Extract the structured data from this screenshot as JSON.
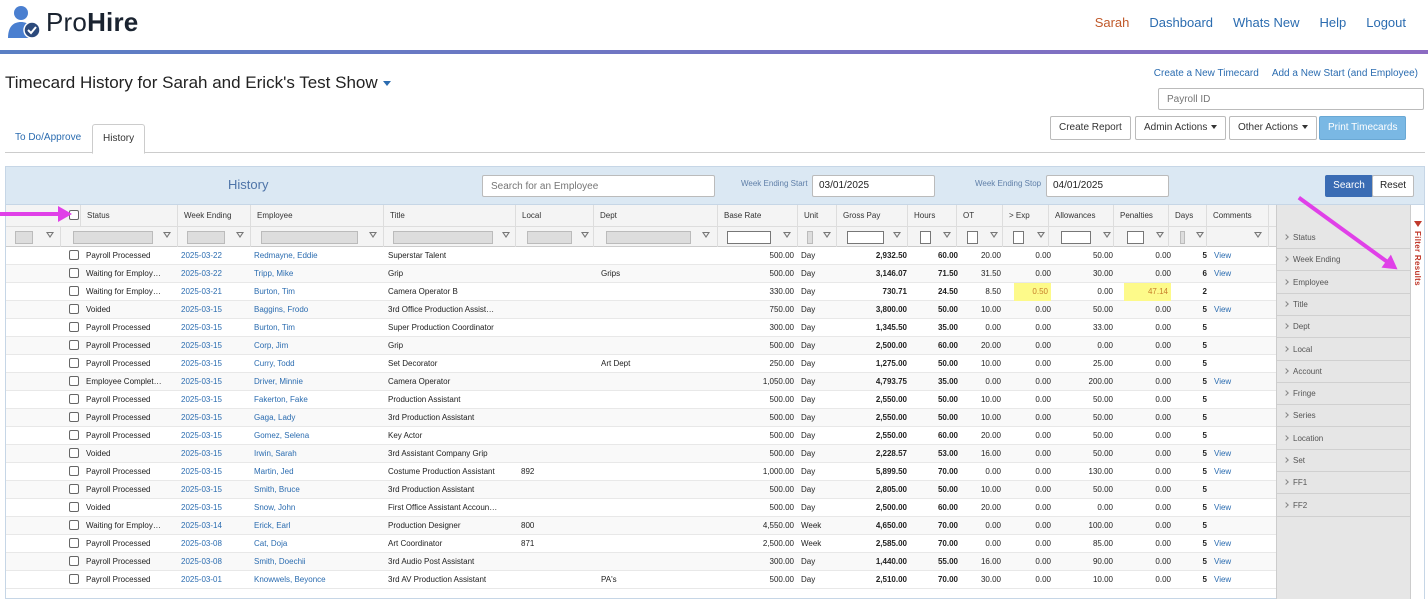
{
  "app": {
    "brand_pro": "Pro",
    "brand_hire": "Hire"
  },
  "nav": {
    "user": "Sarah",
    "items": [
      "Dashboard",
      "Whats New",
      "Help",
      "Logout"
    ]
  },
  "page": {
    "title": "Timecard History for Sarah and Erick's Test Show",
    "links": [
      "Create a New Timecard",
      "Add a New Start (and Employee)"
    ],
    "payroll_placeholder": "Payroll ID"
  },
  "tabs": [
    "To Do/Approve",
    "History"
  ],
  "actions": {
    "create_report": "Create Report",
    "admin": "Admin Actions",
    "other": "Other Actions",
    "print": "Print Timecards"
  },
  "history": {
    "title": "History",
    "search_placeholder": "Search for an Employee",
    "start_label": "Week Ending Start",
    "start_value": "03/01/2025",
    "stop_label": "Week Ending Stop",
    "stop_value": "04/01/2025",
    "search_button": "Search",
    "reset_button": "Reset"
  },
  "columns": [
    "Status",
    "Week Ending",
    "Employee",
    "Title",
    "Local",
    "Dept",
    "Base Rate",
    "Unit",
    "Gross Pay",
    "Hours",
    "OT",
    "> Exp",
    "Allowances",
    "Penalties",
    "Days",
    "Comments"
  ],
  "rows": [
    {
      "status": "Payroll Processed",
      "week": "2025-03-22",
      "employee": "Redmayne, Eddie",
      "title": "Superstar Talent",
      "local": "",
      "dept": "",
      "rate": "500.00",
      "unit": "Day",
      "gross": "2,932.50",
      "hours": "60.00",
      "ot": "20.00",
      "exp": "0.00",
      "allow": "50.00",
      "pen": "0.00",
      "days": "5",
      "comments": "View"
    },
    {
      "status": "Waiting for Employ…",
      "week": "2025-03-22",
      "employee": "Tripp, Mike",
      "title": "Grip",
      "local": "",
      "dept": "Grips",
      "rate": "500.00",
      "unit": "Day",
      "gross": "3,146.07",
      "hours": "71.50",
      "ot": "31.50",
      "exp": "0.00",
      "allow": "30.00",
      "pen": "0.00",
      "days": "6",
      "comments": "View"
    },
    {
      "status": "Waiting for Employ…",
      "week": "2025-03-21",
      "employee": "Burton, Tim",
      "title": "Camera Operator B",
      "local": "",
      "dept": "",
      "rate": "330.00",
      "unit": "Day",
      "gross": "730.71",
      "hours": "24.50",
      "ot": "8.50",
      "exp": "0.50",
      "allow": "0.00",
      "pen": "47.14",
      "days": "2",
      "comments": ""
    },
    {
      "status": "Voided",
      "week": "2025-03-15",
      "employee": "Baggins, Frodo",
      "title": "3rd Office Production Assist…",
      "local": "",
      "dept": "",
      "rate": "750.00",
      "unit": "Day",
      "gross": "3,800.00",
      "hours": "50.00",
      "ot": "10.00",
      "exp": "0.00",
      "allow": "50.00",
      "pen": "0.00",
      "days": "5",
      "comments": "View"
    },
    {
      "status": "Payroll Processed",
      "week": "2025-03-15",
      "employee": "Burton, Tim",
      "title": "Super Production Coordinator",
      "local": "",
      "dept": "",
      "rate": "300.00",
      "unit": "Day",
      "gross": "1,345.50",
      "hours": "35.00",
      "ot": "0.00",
      "exp": "0.00",
      "allow": "33.00",
      "pen": "0.00",
      "days": "5",
      "comments": ""
    },
    {
      "status": "Payroll Processed",
      "week": "2025-03-15",
      "employee": "Corp, Jim",
      "title": "Grip",
      "local": "",
      "dept": "",
      "rate": "500.00",
      "unit": "Day",
      "gross": "2,500.00",
      "hours": "60.00",
      "ot": "20.00",
      "exp": "0.00",
      "allow": "0.00",
      "pen": "0.00",
      "days": "5",
      "comments": ""
    },
    {
      "status": "Payroll Processed",
      "week": "2025-03-15",
      "employee": "Curry, Todd",
      "title": "Set Decorator",
      "local": "",
      "dept": "Art Dept",
      "rate": "250.00",
      "unit": "Day",
      "gross": "1,275.00",
      "hours": "50.00",
      "ot": "10.00",
      "exp": "0.00",
      "allow": "25.00",
      "pen": "0.00",
      "days": "5",
      "comments": ""
    },
    {
      "status": "Employee Complet…",
      "week": "2025-03-15",
      "employee": "Driver, Minnie",
      "title": "Camera Operator",
      "local": "",
      "dept": "",
      "rate": "1,050.00",
      "unit": "Day",
      "gross": "4,793.75",
      "hours": "35.00",
      "ot": "0.00",
      "exp": "0.00",
      "allow": "200.00",
      "pen": "0.00",
      "days": "5",
      "comments": "View"
    },
    {
      "status": "Payroll Processed",
      "week": "2025-03-15",
      "employee": "Fakerton, Fake",
      "title": "Production Assistant",
      "local": "",
      "dept": "",
      "rate": "500.00",
      "unit": "Day",
      "gross": "2,550.00",
      "hours": "50.00",
      "ot": "10.00",
      "exp": "0.00",
      "allow": "50.00",
      "pen": "0.00",
      "days": "5",
      "comments": ""
    },
    {
      "status": "Payroll Processed",
      "week": "2025-03-15",
      "employee": "Gaga, Lady",
      "title": "3rd Production Assistant",
      "local": "",
      "dept": "",
      "rate": "500.00",
      "unit": "Day",
      "gross": "2,550.00",
      "hours": "50.00",
      "ot": "10.00",
      "exp": "0.00",
      "allow": "50.00",
      "pen": "0.00",
      "days": "5",
      "comments": ""
    },
    {
      "status": "Payroll Processed",
      "week": "2025-03-15",
      "employee": "Gomez, Selena",
      "title": "Key Actor",
      "local": "",
      "dept": "",
      "rate": "500.00",
      "unit": "Day",
      "gross": "2,550.00",
      "hours": "60.00",
      "ot": "20.00",
      "exp": "0.00",
      "allow": "50.00",
      "pen": "0.00",
      "days": "5",
      "comments": ""
    },
    {
      "status": "Voided",
      "week": "2025-03-15",
      "employee": "Irwin, Sarah",
      "title": "3rd Assistant Company Grip",
      "local": "",
      "dept": "",
      "rate": "500.00",
      "unit": "Day",
      "gross": "2,228.57",
      "hours": "53.00",
      "ot": "16.00",
      "exp": "0.00",
      "allow": "50.00",
      "pen": "0.00",
      "days": "5",
      "comments": "View"
    },
    {
      "status": "Payroll Processed",
      "week": "2025-03-15",
      "employee": "Martin, Jed",
      "title": "Costume Production Assistant",
      "local": "892",
      "dept": "",
      "rate": "1,000.00",
      "unit": "Day",
      "gross": "5,899.50",
      "hours": "70.00",
      "ot": "0.00",
      "exp": "0.00",
      "allow": "130.00",
      "pen": "0.00",
      "days": "5",
      "comments": "View"
    },
    {
      "status": "Payroll Processed",
      "week": "2025-03-15",
      "employee": "Smith, Bruce",
      "title": "3rd Production Assistant",
      "local": "",
      "dept": "",
      "rate": "500.00",
      "unit": "Day",
      "gross": "2,805.00",
      "hours": "50.00",
      "ot": "10.00",
      "exp": "0.00",
      "allow": "50.00",
      "pen": "0.00",
      "days": "5",
      "comments": ""
    },
    {
      "status": "Voided",
      "week": "2025-03-15",
      "employee": "Snow, John",
      "title": "First Office Assistant Accoun…",
      "local": "",
      "dept": "",
      "rate": "500.00",
      "unit": "Day",
      "gross": "2,500.00",
      "hours": "60.00",
      "ot": "20.00",
      "exp": "0.00",
      "allow": "0.00",
      "pen": "0.00",
      "days": "5",
      "comments": "View"
    },
    {
      "status": "Waiting for Employ…",
      "week": "2025-03-14",
      "employee": "Erick, Earl",
      "title": "Production Designer",
      "local": "800",
      "dept": "",
      "rate": "4,550.00",
      "unit": "Week",
      "gross": "4,650.00",
      "hours": "70.00",
      "ot": "0.00",
      "exp": "0.00",
      "allow": "100.00",
      "pen": "0.00",
      "days": "5",
      "comments": ""
    },
    {
      "status": "Payroll Processed",
      "week": "2025-03-08",
      "employee": "Cat, Doja",
      "title": "Art Coordinator",
      "local": "871",
      "dept": "",
      "rate": "2,500.00",
      "unit": "Week",
      "gross": "2,585.00",
      "hours": "70.00",
      "ot": "0.00",
      "exp": "0.00",
      "allow": "85.00",
      "pen": "0.00",
      "days": "5",
      "comments": "View"
    },
    {
      "status": "Payroll Processed",
      "week": "2025-03-08",
      "employee": "Smith, Doechii",
      "title": "3rd Audio Post Assistant",
      "local": "",
      "dept": "",
      "rate": "300.00",
      "unit": "Day",
      "gross": "1,440.00",
      "hours": "55.00",
      "ot": "16.00",
      "exp": "0.00",
      "allow": "90.00",
      "pen": "0.00",
      "days": "5",
      "comments": "View"
    },
    {
      "status": "Payroll Processed",
      "week": "2025-03-01",
      "employee": "Knowwels, Beyonce",
      "title": "3rd AV Production Assistant",
      "local": "",
      "dept": "PA's",
      "rate": "500.00",
      "unit": "Day",
      "gross": "2,510.00",
      "hours": "70.00",
      "ot": "30.00",
      "exp": "0.00",
      "allow": "10.00",
      "pen": "0.00",
      "days": "5",
      "comments": "View"
    }
  ],
  "sidebar": {
    "tab_label": "Filter Results",
    "items": [
      "Status",
      "Week Ending",
      "Employee",
      "Title",
      "Dept",
      "Local",
      "Account",
      "Fringe",
      "Series",
      "Location",
      "Set",
      "FF1",
      "FF2"
    ]
  },
  "colors": {
    "accent": "#2b6cb0",
    "user": "#c0592a",
    "print_button": "#7ab8e4",
    "search_button": "#3a6cb4",
    "highlight": "#fdfa8a",
    "annotation_arrow": "#e040e8"
  }
}
